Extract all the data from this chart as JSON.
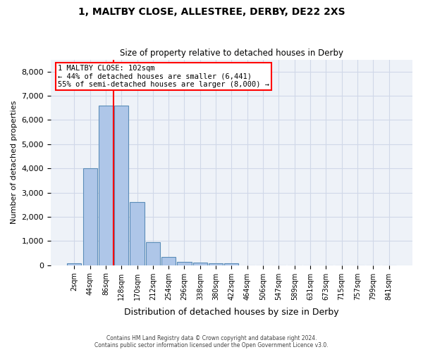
{
  "title1": "1, MALTBY CLOSE, ALLESTREE, DERBY, DE22 2XS",
  "title2": "Size of property relative to detached houses in Derby",
  "xlabel": "Distribution of detached houses by size in Derby",
  "ylabel": "Number of detached properties",
  "bar_values": [
    90,
    4000,
    6600,
    6600,
    2620,
    960,
    330,
    130,
    120,
    80,
    70,
    0,
    0,
    0,
    0,
    0,
    0,
    0,
    0,
    0,
    0
  ],
  "bar_labels": [
    "2sqm",
    "44sqm",
    "86sqm",
    "128sqm",
    "170sqm",
    "212sqm",
    "254sqm",
    "296sqm",
    "338sqm",
    "380sqm",
    "422sqm",
    "464sqm",
    "506sqm",
    "547sqm",
    "589sqm",
    "631sqm",
    "673sqm",
    "715sqm",
    "757sqm",
    "799sqm",
    "841sqm"
  ],
  "bar_color": "#aec6e8",
  "bar_edgecolor": "#5b8db8",
  "grid_color": "#d0d8e8",
  "background_color": "#eef2f8",
  "vline_x": 2.5,
  "vline_color": "red",
  "annotation_line1": "1 MALTBY CLOSE: 102sqm",
  "annotation_line2": "← 44% of detached houses are smaller (6,441)",
  "annotation_line3": "55% of semi-detached houses are larger (8,000) →",
  "annotation_box_color": "red",
  "ylim": [
    0,
    8500
  ],
  "yticks": [
    0,
    1000,
    2000,
    3000,
    4000,
    5000,
    6000,
    7000,
    8000
  ],
  "footer1": "Contains HM Land Registry data © Crown copyright and database right 2024.",
  "footer2": "Contains public sector information licensed under the Open Government Licence v3.0."
}
